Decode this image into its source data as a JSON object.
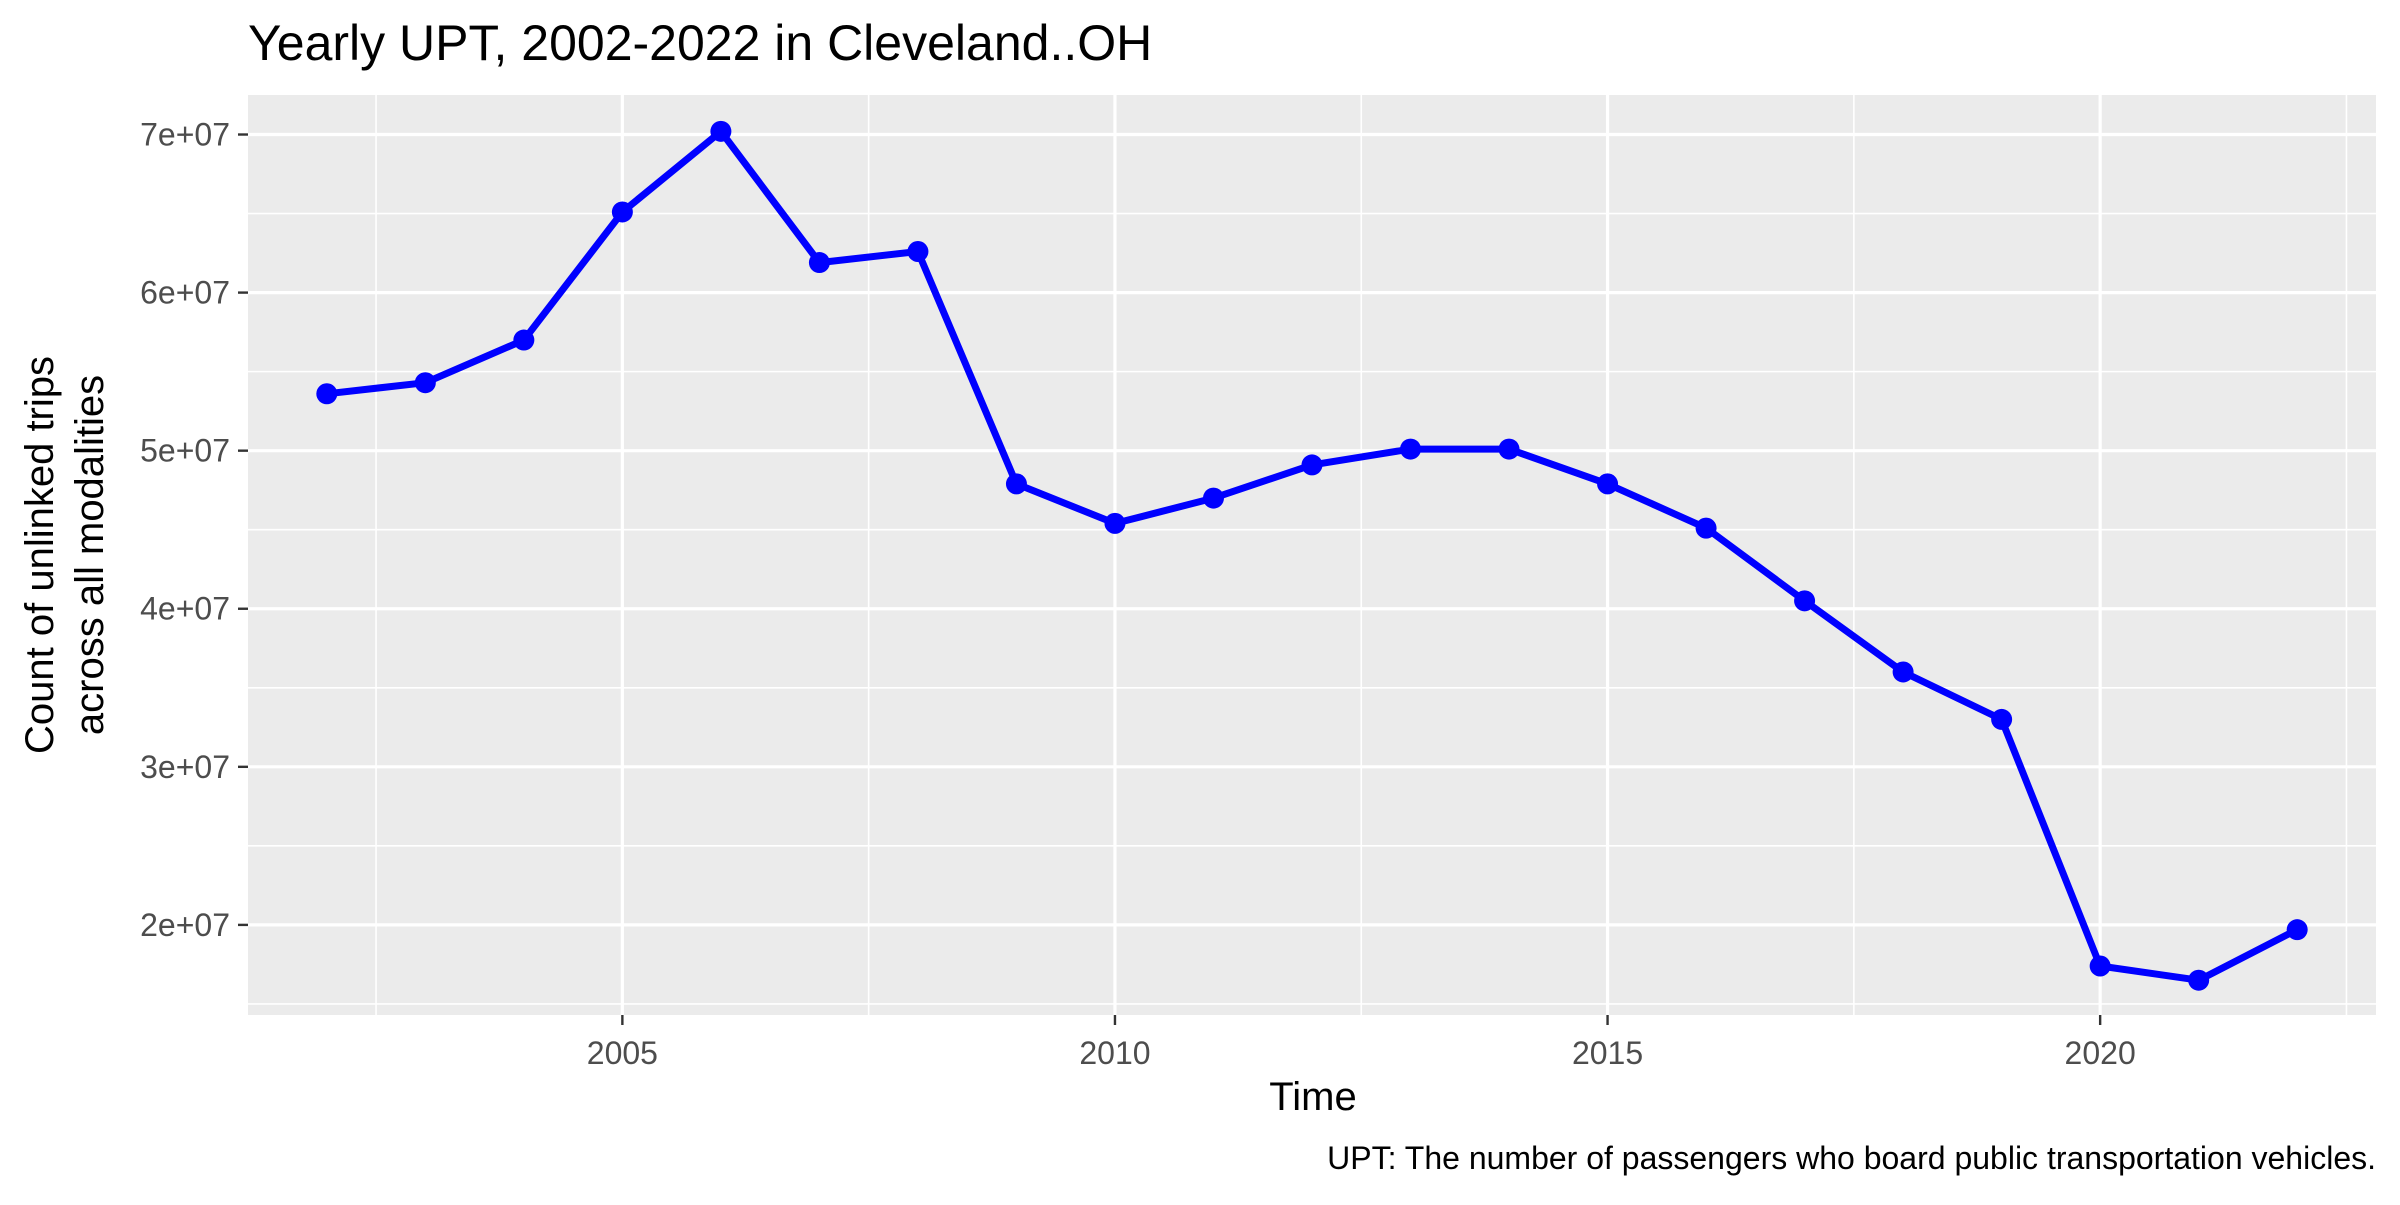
{
  "chart_data": {
    "type": "line",
    "title": "Yearly UPT, 2002-2022 in Cleveland..OH",
    "xlabel": "Time",
    "ylabel_line1": "Count of unlinked trips",
    "ylabel_line2": "across all modalities",
    "caption": "UPT: The number of passengers who board public transportation vehicles.",
    "x": [
      2002,
      2003,
      2004,
      2005,
      2006,
      2007,
      2008,
      2009,
      2010,
      2011,
      2012,
      2013,
      2014,
      2015,
      2016,
      2017,
      2018,
      2019,
      2020,
      2021,
      2022
    ],
    "y": [
      53600000,
      54300000,
      57000000,
      65100000,
      70200000,
      61900000,
      62600000,
      47900000,
      45400000,
      47000000,
      49100000,
      50100000,
      50100000,
      47900000,
      45100000,
      40500000,
      36000000,
      33000000,
      17400000,
      16500000,
      19700000
    ],
    "xlim": [
      2001.2,
      2022.8
    ],
    "ylim": [
      14300000,
      72500000
    ],
    "x_ticks": [
      2005,
      2010,
      2015,
      2020
    ],
    "x_tick_labels": [
      "2005",
      "2010",
      "2015",
      "2020"
    ],
    "x_minor_ticks": [
      2002.5,
      2007.5,
      2012.5,
      2017.5,
      2022.5
    ],
    "y_ticks": [
      20000000,
      30000000,
      40000000,
      50000000,
      60000000,
      70000000
    ],
    "y_tick_labels": [
      "2e+07",
      "3e+07",
      "4e+07",
      "5e+07",
      "6e+07",
      "7e+07"
    ],
    "y_minor_ticks": [
      15000000,
      25000000,
      35000000,
      45000000,
      55000000,
      65000000
    ],
    "grid": true,
    "legend": "none",
    "colors": {
      "line": "#0000FF",
      "panel": "#EBEBEB",
      "grid": "#FFFFFF",
      "axis_text": "#4D4D4D",
      "text": "#000000"
    }
  }
}
